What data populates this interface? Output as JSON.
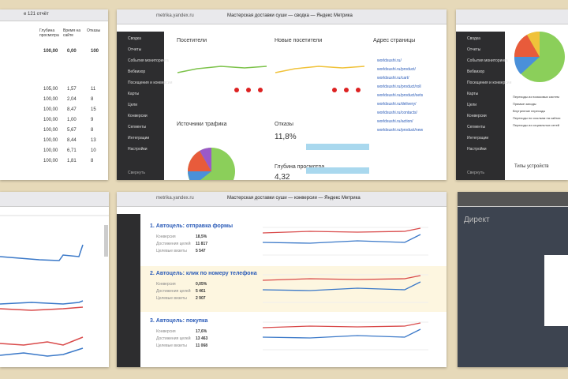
{
  "top_left": {
    "tab": "e 121 отчёт",
    "columns": [
      "Глубина просмотра",
      "Время на сайте",
      "Отказы"
    ],
    "summary": [
      "100,00",
      "0,00",
      "100"
    ],
    "rows": [
      [
        "105,00",
        "1,57",
        "11"
      ],
      [
        "100,00",
        "2,04",
        "8"
      ],
      [
        "100,00",
        "8,47",
        "15"
      ],
      [
        "100,00",
        "1,00",
        "9"
      ],
      [
        "100,00",
        "5,67",
        "8"
      ],
      [
        "100,00",
        "8,44",
        "13"
      ],
      [
        "100,00",
        "6,71",
        "10"
      ],
      [
        "100,00",
        "1,81",
        "8"
      ]
    ]
  },
  "top_center": {
    "url": "metrika.yandex.ru",
    "window_title": "Мастерская доставки суши — сводка — Яндекс Метрика",
    "nav": [
      "Сводка",
      "Отчеты",
      "События мониторинга",
      "Вебвизор",
      "Посещения и конверсии",
      "Карты",
      "Цели",
      "Конверсии",
      "Сегменты",
      "Интеграции",
      "Настройки"
    ],
    "collapse": "Свернуть",
    "visitors": "Посетители",
    "new_visitors": "Новые посетители",
    "page_address": "Адрес страницы",
    "traffic_sources": "Источники трафика",
    "bounce": "Отказы",
    "bounce_value": "11,8%",
    "depth": "Глубина просмотра",
    "depth_value": "4,32",
    "pages": [
      "worldsushi.ru/",
      "worldsushi.ru/product/",
      "worldsushi.ru/cart/",
      "worldsushi.ru/product/roll",
      "worldsushi.ru/product/sets",
      "worldsushi.ru/delivery/",
      "worldsushi.ru/contacts/",
      "worldsushi.ru/action/",
      "worldsushi.ru/product/new"
    ]
  },
  "top_right": {
    "nav": [
      "Сводка",
      "Отчеты",
      "События мониторинга",
      "Вебвизор",
      "Посещения и конверсии",
      "Карты",
      "Цели",
      "Конверсии",
      "Сегменты",
      "Интеграции",
      "Настройки"
    ],
    "collapse": "Свернуть",
    "legend": [
      "Переходы из поисковых систем",
      "Прямые заходы",
      "Внутренние переходы",
      "Переходы по ссылкам на сайтах",
      "Переходы из социальных сетей"
    ],
    "devices": "Типы устройств"
  },
  "bottom_center": {
    "url": "metrika.yandex.ru",
    "window_title": "Мастерская доставки суши — конверсии — Яндекс Метрика",
    "goals": [
      {
        "title": "1. Автоцель: отправка формы",
        "metrics": [
          [
            "Конверсия",
            "18,5%"
          ],
          [
            "Достижения целей",
            "11 817"
          ],
          [
            "Целевые визиты",
            "5 547"
          ]
        ]
      },
      {
        "title": "2. Автоцель: клик по номеру телефона",
        "metrics": [
          [
            "Конверсия",
            "0,05%"
          ],
          [
            "Достижения целей",
            "5 461"
          ],
          [
            "Целевые визиты",
            "2 907"
          ]
        ]
      },
      {
        "title": "3. Автоцель: покупка",
        "metrics": [
          [
            "Конверсия",
            "17,6%"
          ],
          [
            "Достижения целей",
            "13 463"
          ],
          [
            "Целевые визиты",
            "11 068"
          ]
        ]
      }
    ]
  },
  "bottom_right": {
    "logo": "Директ"
  }
}
